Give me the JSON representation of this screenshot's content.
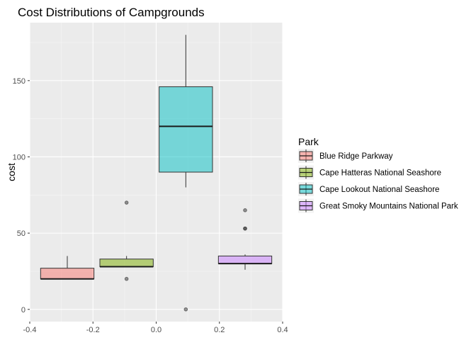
{
  "chart_data": {
    "type": "boxplot",
    "title": "Cost Distributions of Campgrounds",
    "xlabel": "",
    "ylabel": "cost",
    "xlim": [
      -0.4,
      0.4
    ],
    "ylim": [
      -8,
      188
    ],
    "x_ticks": [
      -0.4,
      -0.2,
      0.0,
      0.2,
      0.4
    ],
    "x_tick_labels": [
      "-0.4",
      "-0.2",
      "0.0",
      "0.2",
      "0.4"
    ],
    "y_ticks": [
      0,
      50,
      100,
      150
    ],
    "y_tick_labels": [
      "0",
      "50",
      "100",
      "150"
    ],
    "grid": true,
    "legend": {
      "title": "Park",
      "position": "right"
    },
    "series": [
      {
        "name": "Blue Ridge Parkway",
        "color": "#F8766D",
        "x_center": -0.28125,
        "x_width": 0.1688,
        "min": 20,
        "q1": 20,
        "median": 20,
        "q3": 27,
        "max": 35,
        "outliers": []
      },
      {
        "name": "Cape Hatteras National Seashore",
        "color": "#7CAE00",
        "x_center": -0.09375,
        "x_width": 0.1688,
        "min": 28,
        "q1": 28,
        "median": 28,
        "q3": 33,
        "max": 35,
        "outliers": [
          70,
          20
        ]
      },
      {
        "name": "Cape Lookout National Seashore",
        "color": "#00BFC4",
        "x_center": 0.09375,
        "x_width": 0.1688,
        "min": 80,
        "q1": 90,
        "median": 120,
        "q3": 146,
        "max": 180,
        "outliers": [
          0
        ]
      },
      {
        "name": "Great Smoky Mountains National Park",
        "color": "#C77CFF",
        "x_center": 0.28125,
        "x_width": 0.1688,
        "min": 26,
        "q1": 30,
        "median": 30,
        "q3": 35,
        "max": 36,
        "outliers": [
          65,
          53,
          53
        ]
      }
    ]
  }
}
